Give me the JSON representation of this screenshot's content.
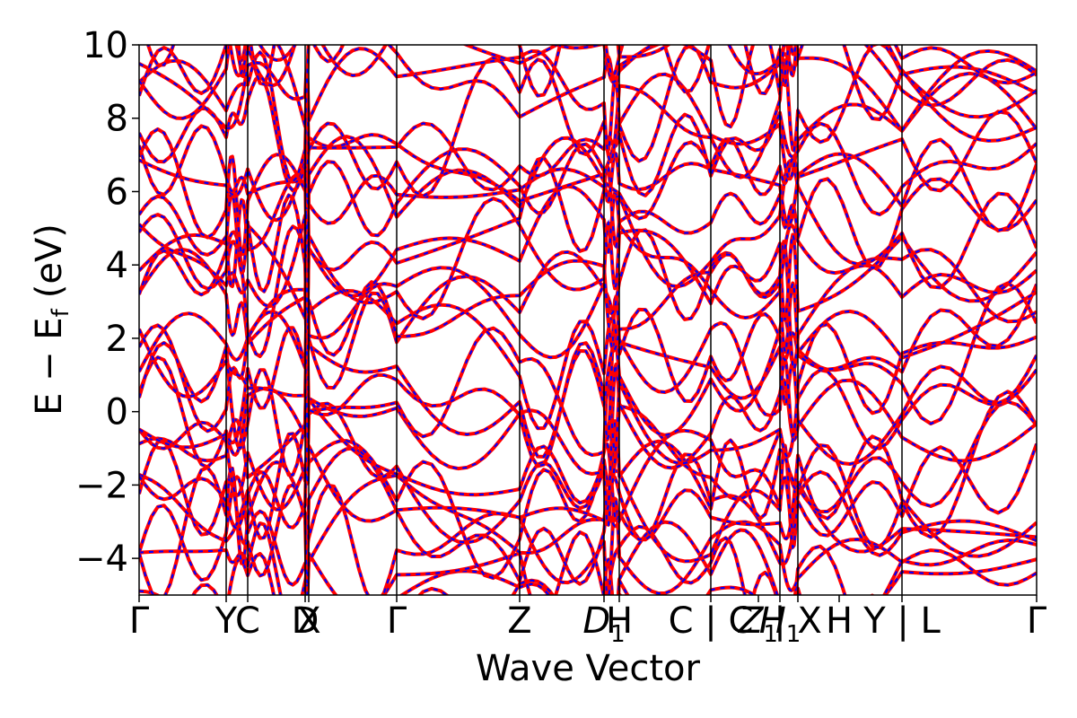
{
  "chart_data": {
    "type": "line",
    "xlabel": "Wave Vector",
    "ylabel": "E − E",
    "ylabel_sub": "f",
    "ylabel_unit": "(eV)",
    "ylim": [
      -5,
      10
    ],
    "xlim": [
      0,
      1
    ],
    "yticks": [
      "−4",
      "−2",
      "0",
      "2",
      "4",
      "6",
      "8",
      "10"
    ],
    "ytick_values": [
      -4,
      -2,
      0,
      2,
      4,
      6,
      8,
      10
    ],
    "kpoint_labels": [
      {
        "label": "Γ",
        "pos": 0.0
      },
      {
        "label": "Y",
        "pos": 0.097
      },
      {
        "label": "C",
        "pos": 0.121
      },
      {
        "label": "D",
        "pos": 0.185
      },
      {
        "label": "X",
        "pos": 0.189
      },
      {
        "label": "Γ",
        "pos": 0.287
      },
      {
        "label": "Z",
        "pos": 0.424
      },
      {
        "label": "D",
        "sub": "1",
        "italic": true,
        "pos": 0.518
      },
      {
        "label": "H",
        "pos": 0.535
      },
      {
        "label": "C | C",
        "pos": 0.637
      },
      {
        "label": "Z",
        "sub": "1",
        "italic": true,
        "pos": 0.69
      },
      {
        "label": "H",
        "sub": "1",
        "italic": true,
        "pos": 0.714
      },
      {
        "label": "| X",
        "pos": 0.734
      },
      {
        "label": "H",
        "pos": 0.78
      },
      {
        "label": "Y | L",
        "pos": 0.85
      },
      {
        "label": "Γ",
        "pos": 1.0
      }
    ],
    "kpoint_lines": [
      0.097,
      0.121,
      0.185,
      0.189,
      0.287,
      0.424,
      0.518,
      0.535,
      0.637,
      0.714,
      0.734,
      0.85
    ],
    "series": [
      {
        "color": "#ff0000",
        "style": "solid"
      },
      {
        "color": "#0000ff",
        "style": "dashed"
      }
    ],
    "grid": false
  }
}
